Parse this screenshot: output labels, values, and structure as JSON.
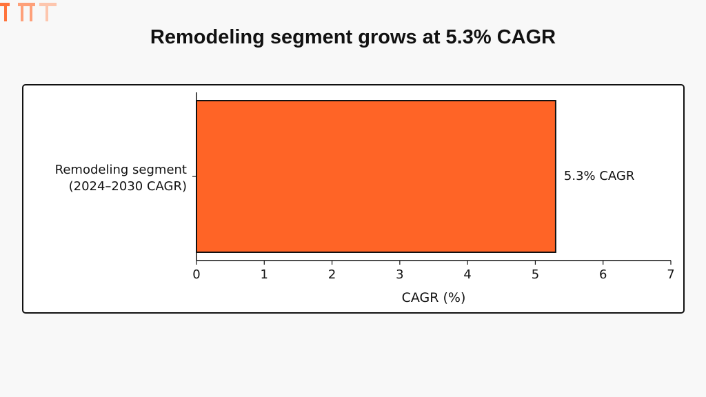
{
  "brand": {
    "logo_text": "TMR",
    "logo_color": "#ff6426"
  },
  "chart_data": {
    "type": "bar",
    "orientation": "horizontal",
    "title": "Remodeling segment grows at 5.3% CAGR",
    "categories": [
      "Remodeling segment\n(2024–2030 CAGR)"
    ],
    "category_lines": [
      "Remodeling segment",
      "(2024–2030 CAGR)"
    ],
    "values": [
      5.3
    ],
    "data_labels": [
      "5.3% CAGR"
    ],
    "xlabel": "CAGR (%)",
    "ylabel": "",
    "xlim": [
      0,
      7
    ],
    "xticks": [
      "0",
      "1",
      "2",
      "3",
      "4",
      "5",
      "6",
      "7"
    ],
    "bar_color": "#ff6426",
    "grid": false
  }
}
